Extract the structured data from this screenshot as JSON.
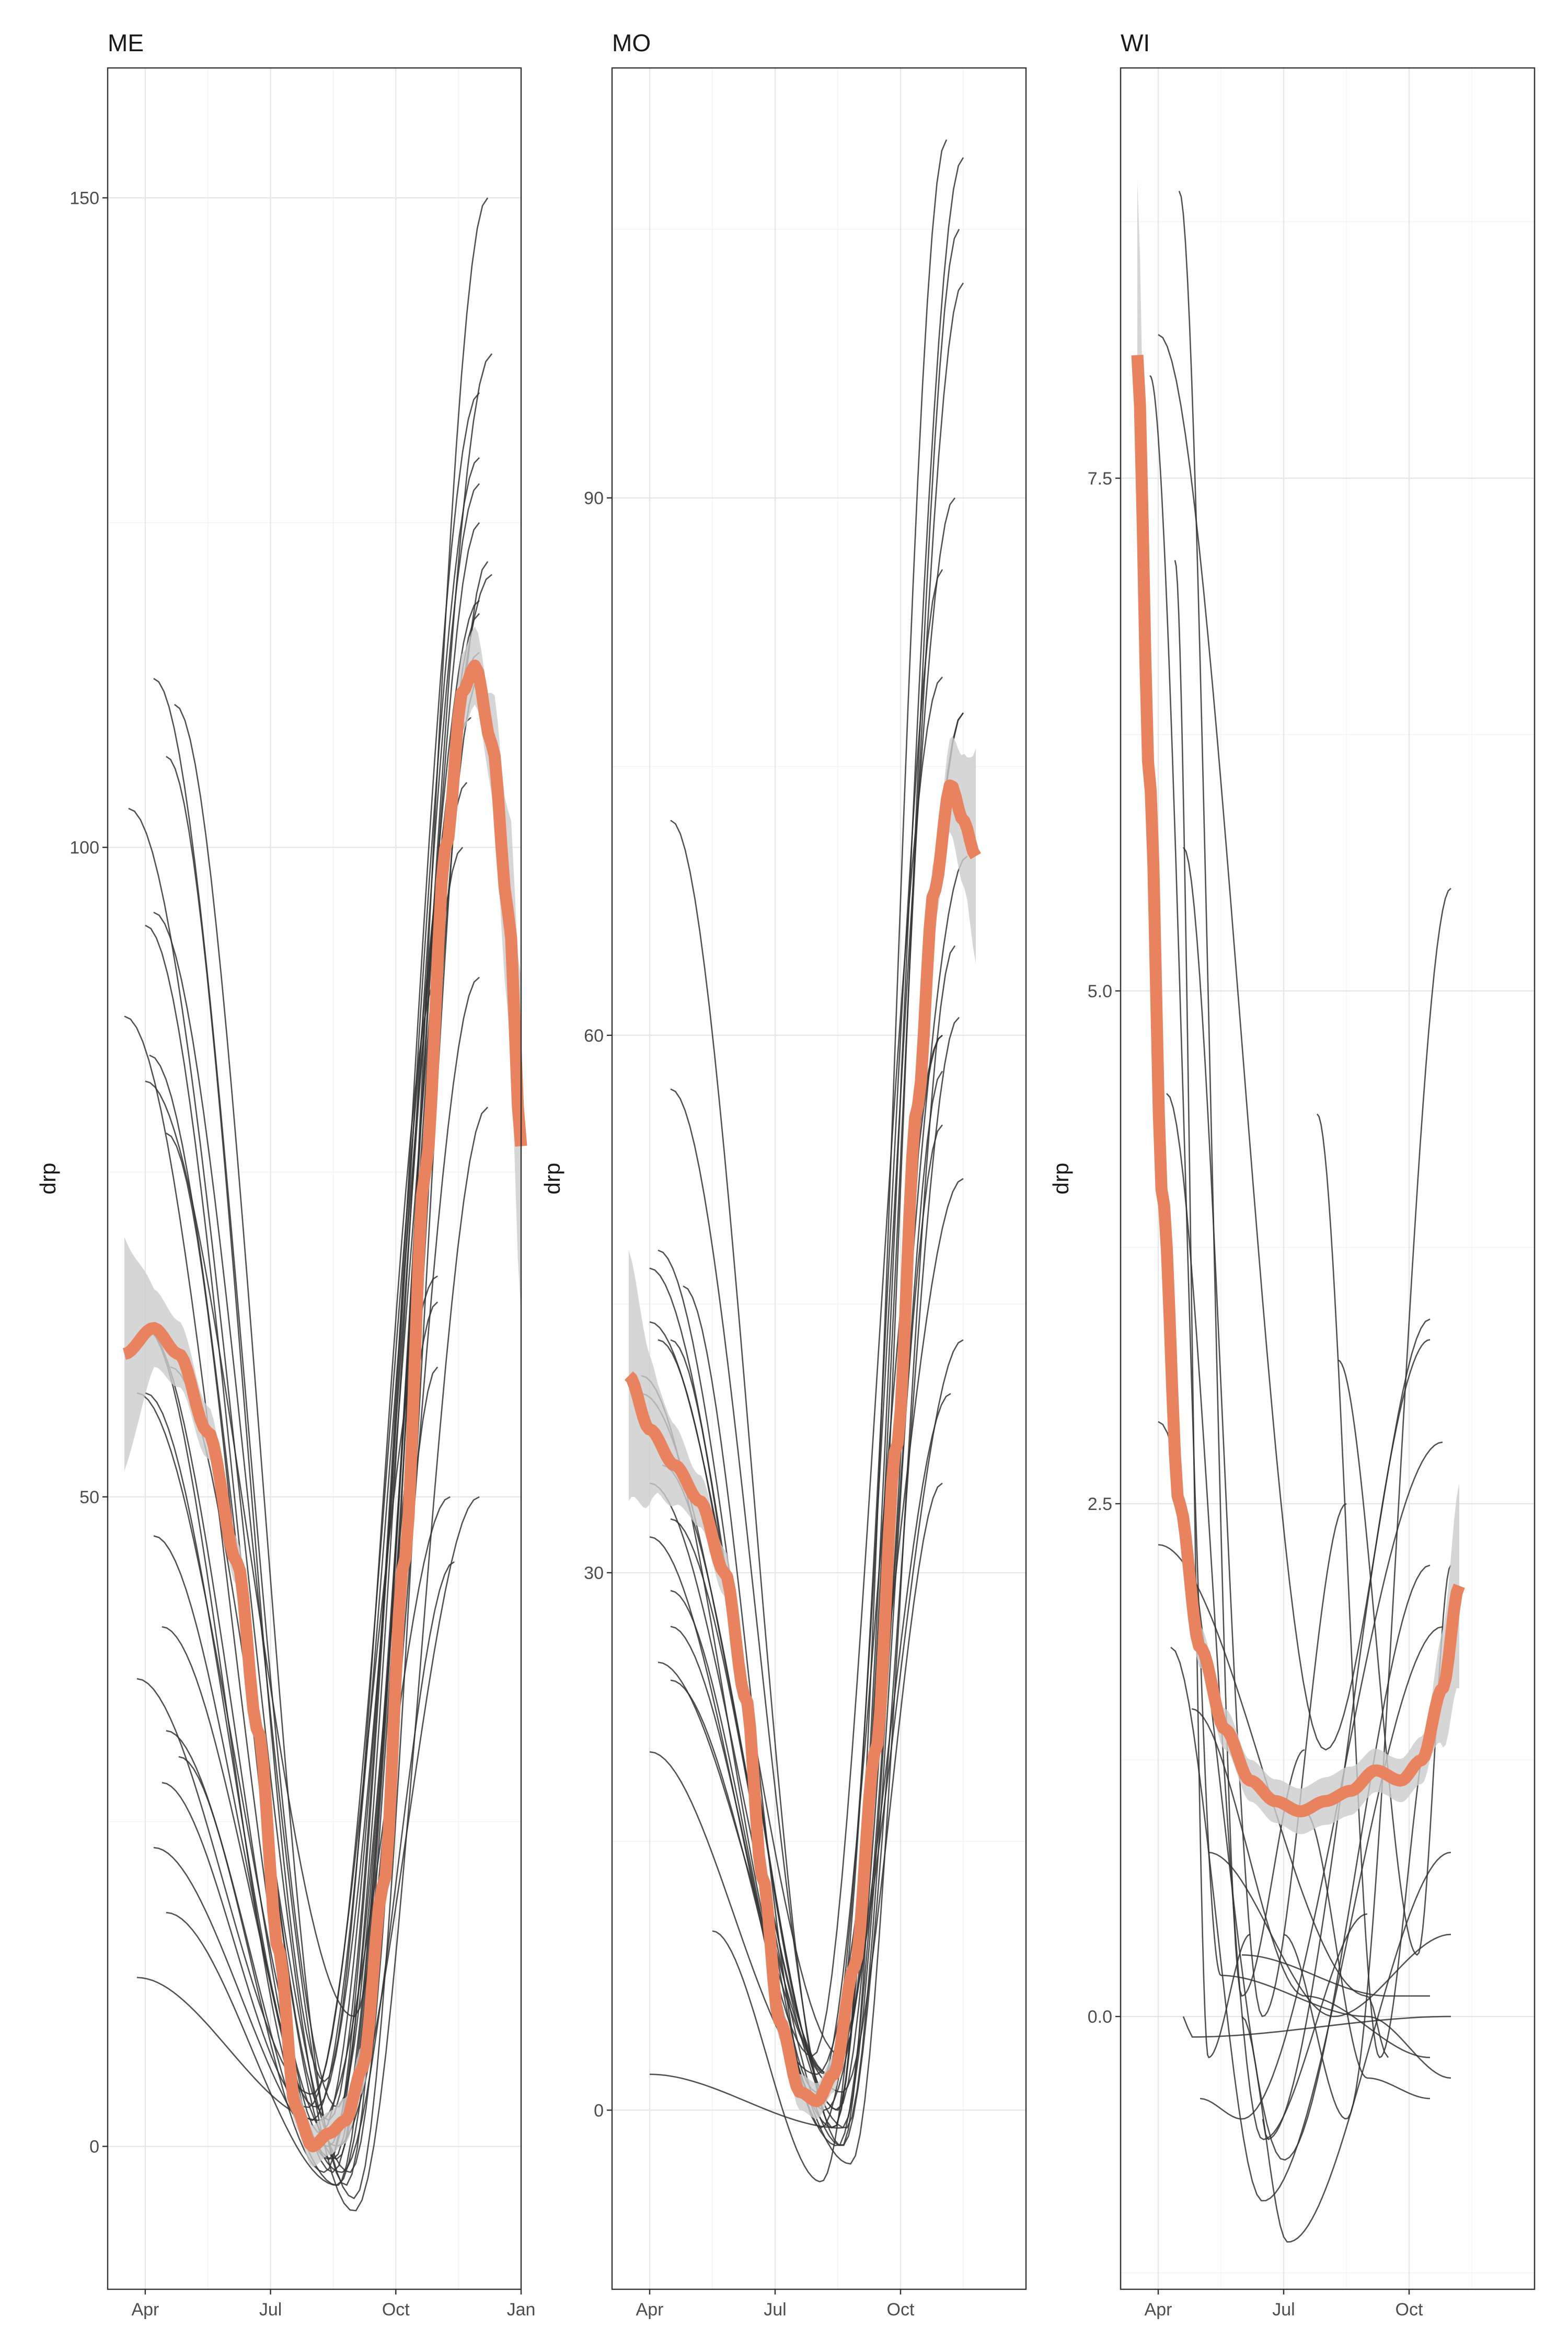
{
  "colors": {
    "smooth": "#E8825F",
    "ribbon": "#CCCCCC",
    "trace": "#333333",
    "grid": "#E6E6E6",
    "frame": "#333333"
  },
  "chart_data": [
    {
      "type": "line",
      "panel": "ME",
      "ylabel": "drp",
      "x_ticks": [
        "Apr",
        "Jul",
        "Oct",
        "Jan"
      ],
      "x_range_months": [
        2.1,
        12.0
      ],
      "ylim": [
        -11,
        160
      ],
      "y_ticks": [
        0,
        50,
        100,
        150
      ],
      "smooth": [
        [
          2.5,
          61
        ],
        [
          3.2,
          63
        ],
        [
          3.8,
          61
        ],
        [
          4.5,
          55
        ],
        [
          5.2,
          45
        ],
        [
          5.7,
          32
        ],
        [
          6.2,
          15
        ],
        [
          6.6,
          3
        ],
        [
          7.0,
          0
        ],
        [
          7.4,
          1
        ],
        [
          7.8,
          2
        ],
        [
          8.2,
          6
        ],
        [
          8.7,
          20
        ],
        [
          9.2,
          45
        ],
        [
          9.7,
          75
        ],
        [
          10.2,
          100
        ],
        [
          10.6,
          112
        ],
        [
          10.9,
          114
        ],
        [
          11.3,
          108
        ],
        [
          11.7,
          95
        ],
        [
          12.0,
          77
        ]
      ],
      "ribbon_halfwidth": [
        [
          2.5,
          9
        ],
        [
          3.2,
          3
        ],
        [
          4.5,
          2
        ],
        [
          6.5,
          1.5
        ],
        [
          9,
          2
        ],
        [
          10.5,
          3
        ],
        [
          11.2,
          3
        ],
        [
          11.7,
          8
        ],
        [
          12.0,
          13
        ]
      ],
      "trace_count": 38,
      "traces": [
        {
          "x0": 3.2,
          "x1": 10.6,
          "ystart": 113,
          "ymin": 3,
          "tmin": 7.6,
          "yend": 100
        },
        {
          "x0": 3.7,
          "x1": 11.2,
          "ystart": 111,
          "ymin": -3,
          "tmin": 7.8,
          "yend": 150
        },
        {
          "x0": 2.5,
          "x1": 11.3,
          "ystart": 87,
          "ymin": -2,
          "tmin": 7.5,
          "yend": 138
        },
        {
          "x0": 3.0,
          "x1": 11.0,
          "ystart": 94,
          "ymin": 2,
          "tmin": 7.4,
          "yend": 135
        },
        {
          "x0": 3.2,
          "x1": 11.2,
          "ystart": 95,
          "ymin": -4,
          "tmin": 8.0,
          "yend": 122
        },
        {
          "x0": 3.1,
          "x1": 11.0,
          "ystart": 84,
          "ymin": -1,
          "tmin": 7.6,
          "yend": 125
        },
        {
          "x0": 3.5,
          "x1": 11.0,
          "ystart": 78,
          "ymin": 1,
          "tmin": 7.2,
          "yend": 119
        },
        {
          "x0": 3.0,
          "x1": 11.0,
          "ystart": 63,
          "ymin": 2,
          "tmin": 7.0,
          "yend": 115
        },
        {
          "x0": 3.6,
          "x1": 11.0,
          "ystart": 60,
          "ymin": -2,
          "tmin": 7.9,
          "yend": 113
        },
        {
          "x0": 3.0,
          "x1": 11.3,
          "ystart": 58,
          "ymin": 3,
          "tmin": 7.1,
          "yend": 121
        },
        {
          "x0": 3.2,
          "x1": 11.0,
          "ystart": 47,
          "ymin": -1,
          "tmin": 7.5,
          "yend": 118
        },
        {
          "x0": 2.8,
          "x1": 10.8,
          "ystart": 36,
          "ymin": 4,
          "tmin": 7.0,
          "yend": 110
        },
        {
          "x0": 3.5,
          "x1": 10.7,
          "ystart": 32,
          "ymin": -3,
          "tmin": 7.6,
          "yend": 105
        },
        {
          "x0": 3.4,
          "x1": 10.0,
          "ystart": 28,
          "ymin": 3,
          "tmin": 6.9,
          "yend": 67
        },
        {
          "x0": 3.2,
          "x1": 10.0,
          "ystart": 23,
          "ymin": 0,
          "tmin": 7.4,
          "yend": 65
        },
        {
          "x0": 3.5,
          "x1": 11.0,
          "ystart": 18,
          "ymin": -3,
          "tmin": 7.6,
          "yend": 90
        },
        {
          "x0": 2.8,
          "x1": 10.3,
          "ystart": 13,
          "ymin": 2,
          "tmin": 7.2,
          "yend": 50
        },
        {
          "x0": 3.4,
          "x1": 10.4,
          "ystart": 40,
          "ymin": -2,
          "tmin": 7.7,
          "yend": 45
        },
        {
          "x0": 2.6,
          "x1": 11.2,
          "ystart": 103,
          "ymin": -5,
          "tmin": 8.0,
          "yend": 80
        },
        {
          "x0": 3.0,
          "x1": 10.0,
          "ystart": 82,
          "ymin": 10,
          "tmin": 8.0,
          "yend": 60
        },
        {
          "x0": 3.5,
          "x1": 10.0,
          "ystart": 107,
          "ymin": 5,
          "tmin": 7.3,
          "yend": 90
        },
        {
          "x0": 3.0,
          "x1": 11.0,
          "ystart": 63,
          "ymin": -1,
          "tmin": 7.4,
          "yend": 128
        },
        {
          "x0": 2.8,
          "x1": 11.0,
          "ystart": 58,
          "ymin": 0,
          "tmin": 7.6,
          "yend": 50
        },
        {
          "x0": 3.8,
          "x1": 11.0,
          "ystart": 30,
          "ymin": -2,
          "tmin": 7.3,
          "yend": 130
        }
      ]
    },
    {
      "type": "line",
      "panel": "MO",
      "ylabel": "drp",
      "x_ticks": [
        "Apr",
        "Jul",
        "Oct"
      ],
      "x_range_months": [
        2.1,
        12.0
      ],
      "ylim": [
        -10,
        114
      ],
      "y_ticks": [
        0,
        30,
        60,
        90
      ],
      "smooth": [
        [
          2.5,
          41
        ],
        [
          3.0,
          38
        ],
        [
          3.6,
          36
        ],
        [
          4.2,
          34
        ],
        [
          4.8,
          30
        ],
        [
          5.3,
          23
        ],
        [
          5.7,
          13
        ],
        [
          6.1,
          5
        ],
        [
          6.6,
          1
        ],
        [
          7.0,
          0.5
        ],
        [
          7.4,
          2
        ],
        [
          7.9,
          8
        ],
        [
          8.4,
          20
        ],
        [
          8.9,
          37
        ],
        [
          9.4,
          56
        ],
        [
          9.8,
          68
        ],
        [
          10.2,
          74
        ],
        [
          10.5,
          72
        ],
        [
          10.8,
          70
        ]
      ],
      "ribbon_halfwidth": [
        [
          2.5,
          7
        ],
        [
          3.2,
          3
        ],
        [
          4,
          1.5
        ],
        [
          6,
          1
        ],
        [
          9,
          1
        ],
        [
          10,
          2
        ],
        [
          10.3,
          3
        ],
        [
          10.6,
          4
        ],
        [
          10.8,
          6
        ]
      ],
      "trace_count": 36,
      "traces": [
        {
          "x0": 3.5,
          "x1": 10.5,
          "ystart": 72,
          "ymin": -1,
          "tmin": 7.4,
          "yend": 109
        },
        {
          "x0": 3.5,
          "x1": 10.4,
          "ystart": 57,
          "ymin": -2,
          "tmin": 7.6,
          "yend": 105
        },
        {
          "x0": 3.2,
          "x1": 10.3,
          "ystart": 48,
          "ymin": 2,
          "tmin": 7.2,
          "yend": 90
        },
        {
          "x0": 3.0,
          "x1": 10.5,
          "ystart": 47,
          "ymin": 0,
          "tmin": 7.5,
          "yend": 78
        },
        {
          "x0": 3.8,
          "x1": 10.6,
          "ystart": 46,
          "ymin": -1,
          "tmin": 7.1,
          "yend": 70
        },
        {
          "x0": 3.0,
          "x1": 10.2,
          "ystart": 44,
          "ymin": 3,
          "tmin": 7.6,
          "yend": 73
        },
        {
          "x0": 3.5,
          "x1": 10.0,
          "ystart": 43,
          "ymin": 1,
          "tmin": 7.0,
          "yend": 60
        },
        {
          "x0": 2.8,
          "x1": 10.0,
          "ystart": 40,
          "ymin": -1,
          "tmin": 7.7,
          "yend": 58
        },
        {
          "x0": 3.3,
          "x1": 10.5,
          "ystart": 36,
          "ymin": 2,
          "tmin": 7.3,
          "yend": 43
        },
        {
          "x0": 3.0,
          "x1": 10.0,
          "ystart": 32,
          "ymin": -2,
          "tmin": 7.5,
          "yend": 55
        },
        {
          "x0": 3.5,
          "x1": 10.2,
          "ystart": 29,
          "ymin": 0,
          "tmin": 7.2,
          "yend": 40
        },
        {
          "x0": 3.2,
          "x1": 10.0,
          "ystart": 25,
          "ymin": 1,
          "tmin": 7.6,
          "yend": 35
        },
        {
          "x0": 3.0,
          "x1": 10.5,
          "ystart": 20,
          "ymin": 2,
          "tmin": 7.0,
          "yend": 52
        },
        {
          "x0": 3.5,
          "x1": 10.3,
          "ystart": 24,
          "ymin": -3,
          "tmin": 7.8,
          "yend": 65
        },
        {
          "x0": 2.8,
          "x1": 10.0,
          "ystart": 41,
          "ymin": 3,
          "tmin": 6.9,
          "yend": 80
        },
        {
          "x0": 3.5,
          "x1": 10.5,
          "ystart": 27,
          "ymin": -1,
          "tmin": 7.4,
          "yend": 102
        },
        {
          "x0": 3.2,
          "x1": 10.1,
          "ystart": 43,
          "ymin": 0,
          "tmin": 7.5,
          "yend": 110
        },
        {
          "x0": 3.0,
          "x1": 10.0,
          "ystart": 35,
          "ymin": 2,
          "tmin": 7.3,
          "yend": 86
        },
        {
          "x0": 3.5,
          "x1": 10.4,
          "ystart": 33,
          "ymin": -2,
          "tmin": 7.6,
          "yend": 61
        },
        {
          "x0": 4.5,
          "x1": 10.0,
          "ystart": 10,
          "ymin": -4,
          "tmin": 7.1,
          "yend": 60
        },
        {
          "x0": 3.0,
          "x1": 10.5,
          "ystart": 2,
          "ymin": -1,
          "tmin": 7.6,
          "yend": 78
        }
      ]
    },
    {
      "type": "line",
      "panel": "WI",
      "ylabel": "drp",
      "x_ticks": [
        "Apr",
        "Jul",
        "Oct"
      ],
      "x_range_months": [
        2.1,
        12.0
      ],
      "ylim": [
        -1.33,
        9.5
      ],
      "y_ticks": [
        0.0,
        2.5,
        5.0,
        7.5
      ],
      "smooth": [
        [
          2.5,
          8.1
        ],
        [
          2.8,
          6.0
        ],
        [
          3.1,
          4.0
        ],
        [
          3.5,
          2.5
        ],
        [
          4.0,
          1.8
        ],
        [
          4.6,
          1.4
        ],
        [
          5.2,
          1.15
        ],
        [
          5.8,
          1.05
        ],
        [
          6.4,
          1.0
        ],
        [
          7.0,
          1.05
        ],
        [
          7.6,
          1.1
        ],
        [
          8.2,
          1.2
        ],
        [
          8.8,
          1.15
        ],
        [
          9.3,
          1.25
        ],
        [
          9.8,
          1.6
        ],
        [
          10.2,
          2.1
        ]
      ],
      "ribbon_halfwidth": [
        [
          2.5,
          0.85
        ],
        [
          2.8,
          0.3
        ],
        [
          3.5,
          0.1
        ],
        [
          5,
          0.1
        ],
        [
          7.5,
          0.12
        ],
        [
          8.5,
          0.1
        ],
        [
          9.5,
          0.12
        ],
        [
          10.2,
          0.5
        ]
      ],
      "trace_count": 44,
      "traces": [
        {
          "x0": 2.8,
          "x1": 4.5,
          "ystart": 8.0,
          "ymin": 0.2,
          "tmin": 4.5,
          "yend": 0.2
        },
        {
          "x0": 3.5,
          "x1": 6.5,
          "ystart": 8.9,
          "ymin": 0.1,
          "tmin": 5.0,
          "yend": 1.3
        },
        {
          "x0": 3.4,
          "x1": 5.2,
          "ystart": 7.1,
          "ymin": -0.2,
          "tmin": 4.2,
          "yend": 0.4
        },
        {
          "x0": 3.6,
          "x1": 7.5,
          "ystart": 5.7,
          "ymin": 0.0,
          "tmin": 5.5,
          "yend": 2.5
        },
        {
          "x0": 3.0,
          "x1": 9.5,
          "ystart": 8.2,
          "ymin": 1.3,
          "tmin": 7.0,
          "yend": 3.4
        },
        {
          "x0": 3.2,
          "x1": 8.0,
          "ystart": 4.5,
          "ymin": -0.6,
          "tmin": 5.5,
          "yend": 0.5
        },
        {
          "x0": 4.0,
          "x1": 9.8,
          "ystart": -0.4,
          "ymin": -0.5,
          "tmin": 5.0,
          "yend": 2.8
        },
        {
          "x0": 3.0,
          "x1": 9.5,
          "ystart": 2.9,
          "ymin": -0.7,
          "tmin": 6.0,
          "yend": 2.2
        },
        {
          "x0": 3.3,
          "x1": 9.8,
          "ystart": 1.8,
          "ymin": -0.9,
          "tmin": 5.5,
          "yend": 1.9
        },
        {
          "x0": 4.5,
          "x1": 10.0,
          "ystart": 0.2,
          "ymin": 0.0,
          "tmin": 8.0,
          "yend": -0.3
        },
        {
          "x0": 5.0,
          "x1": 10.0,
          "ystart": 0.0,
          "ymin": -1.1,
          "tmin": 6.1,
          "yend": 0.8
        },
        {
          "x0": 3.0,
          "x1": 8.5,
          "ystart": 2.3,
          "ymin": 0.1,
          "tmin": 8.0,
          "yend": -0.2
        },
        {
          "x0": 6.8,
          "x1": 9.6,
          "ystart": 4.4,
          "ymin": -0.2,
          "tmin": 8.3,
          "yend": 1.5
        },
        {
          "x0": 6.5,
          "x1": 9.5,
          "ystart": 1.0,
          "ymin": -0.3,
          "tmin": 8.0,
          "yend": -0.4
        },
        {
          "x0": 7.3,
          "x1": 10.0,
          "ystart": 3.2,
          "ymin": 0.3,
          "tmin": 9.2,
          "yend": 2.2
        },
        {
          "x0": 4.5,
          "x1": 9.5,
          "ystart": -0.8,
          "ymin": -0.8,
          "tmin": 4.5,
          "yend": 2.3
        },
        {
          "x0": 6.0,
          "x1": 10.0,
          "ystart": 0.4,
          "ymin": -0.5,
          "tmin": 7.5,
          "yend": 5.5
        },
        {
          "x0": 5.5,
          "x1": 9.8,
          "ystart": 0.1,
          "ymin": 0.0,
          "tmin": 5.5,
          "yend": 0.3
        },
        {
          "x0": 5.0,
          "x1": 9.5,
          "ystart": 0.3,
          "ymin": 0.1,
          "tmin": 8.5,
          "yend": 0.1
        },
        {
          "x0": 4.2,
          "x1": 10.0,
          "ystart": 0.8,
          "ymin": 0.0,
          "tmin": 7.2,
          "yend": 0.4
        },
        {
          "x0": 3.8,
          "x1": 9.5,
          "ystart": 1.5,
          "ymin": 0.1,
          "tmin": 6.5,
          "yend": -0.2
        },
        {
          "x0": 5.5,
          "x1": 9.5,
          "ystart": -0.5,
          "ymin": -0.6,
          "tmin": 5.6,
          "yend": 3.3
        },
        {
          "x0": 3.6,
          "x1": 10.0,
          "ystart": 0.0,
          "ymin": -0.1,
          "tmin": 3.8,
          "yend": 0.0
        }
      ]
    }
  ]
}
